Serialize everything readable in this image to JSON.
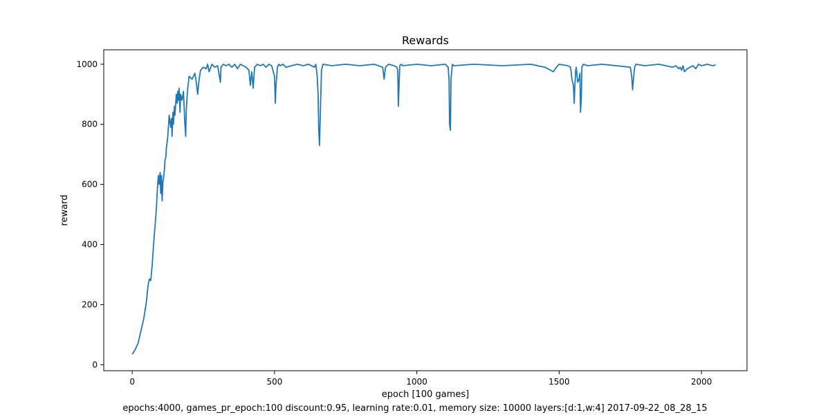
{
  "figure": {
    "caption": "epochs:4000, games_pr_epoch:100 discount:0.95, learning rate:0.01, memory size: 10000 layers:[d:1,w:4] 2017-09-22_08_28_15"
  },
  "chart_data": {
    "type": "line",
    "title": "Rewards",
    "xlabel": "epoch [100 games]",
    "ylabel": "reward",
    "xlim": [
      -100,
      2160
    ],
    "ylim": [
      -20,
      1048
    ],
    "xticks": [
      0,
      500,
      1000,
      1500,
      2000
    ],
    "yticks": [
      0,
      200,
      400,
      600,
      800,
      1000
    ],
    "grid": false,
    "legend": "none",
    "series": [
      {
        "color": "#1f77b4",
        "x": [
          0,
          10,
          20,
          30,
          40,
          50,
          55,
          60,
          65,
          70,
          75,
          80,
          85,
          88,
          92,
          95,
          98,
          100,
          103,
          105,
          108,
          110,
          113,
          115,
          118,
          120,
          125,
          130,
          135,
          138,
          140,
          143,
          145,
          148,
          150,
          155,
          158,
          160,
          163,
          165,
          168,
          170,
          175,
          180,
          185,
          188,
          190,
          195,
          200,
          210,
          220,
          225,
          230,
          235,
          240,
          250,
          260,
          265,
          270,
          280,
          290,
          300,
          310,
          312,
          320,
          330,
          340,
          350,
          360,
          370,
          380,
          390,
          400,
          410,
          415,
          420,
          425,
          430,
          440,
          450,
          460,
          470,
          480,
          490,
          500,
          503,
          505,
          508,
          510,
          515,
          520,
          530,
          540,
          560,
          580,
          600,
          620,
          640,
          645,
          650,
          653,
          655,
          658,
          660,
          665,
          670,
          700,
          750,
          800,
          850,
          880,
          885,
          890,
          900,
          920,
          930,
          933,
          935,
          938,
          940,
          945,
          950,
          1000,
          1050,
          1100,
          1110,
          1113,
          1115,
          1118,
          1120,
          1125,
          1130,
          1200,
          1300,
          1400,
          1450,
          1470,
          1480,
          1490,
          1500,
          1530,
          1540,
          1545,
          1550,
          1553,
          1555,
          1558,
          1560,
          1565,
          1570,
          1573,
          1575,
          1578,
          1580,
          1585,
          1600,
          1650,
          1700,
          1750,
          1755,
          1758,
          1760,
          1765,
          1770,
          1800,
          1850,
          1900,
          1910,
          1920,
          1925,
          1930,
          1935,
          1940,
          1950,
          1960,
          1970,
          1980,
          1990,
          2000,
          2020,
          2040,
          2050
        ],
        "y": [
          35,
          50,
          70,
          110,
          150,
          210,
          260,
          285,
          280,
          330,
          400,
          460,
          520,
          580,
          630,
          600,
          640,
          570,
          630,
          545,
          610,
          620,
          650,
          680,
          690,
          720,
          760,
          830,
          790,
          820,
          760,
          840,
          800,
          860,
          830,
          900,
          870,
          910,
          880,
          920,
          840,
          900,
          880,
          910,
          800,
          760,
          850,
          920,
          960,
          950,
          970,
          940,
          900,
          950,
          980,
          990,
          985,
          1000,
          975,
          1000,
          990,
          995,
          940,
          990,
          1000,
          995,
          1000,
          990,
          1000,
          985,
          1000,
          995,
          990,
          980,
          930,
          975,
          920,
          990,
          1000,
          995,
          1000,
          990,
          1000,
          995,
          960,
          870,
          930,
          960,
          990,
          1000,
          995,
          1000,
          990,
          995,
          1000,
          995,
          1000,
          990,
          1000,
          960,
          900,
          790,
          730,
          800,
          980,
          1000,
          995,
          1000,
          995,
          1000,
          990,
          950,
          990,
          1000,
          995,
          990,
          980,
          860,
          940,
          995,
          1000,
          995,
          1000,
          995,
          1000,
          990,
          950,
          800,
          780,
          950,
          1000,
          995,
          1000,
          995,
          1000,
          990,
          980,
          975,
          990,
          1000,
          995,
          990,
          950,
          930,
          870,
          920,
          980,
          990,
          940,
          950,
          970,
          840,
          890,
          990,
          1000,
          995,
          1000,
          995,
          990,
          960,
          915,
          940,
          990,
          1000,
          995,
          1000,
          990,
          995,
          985,
          990,
          980,
          995,
          975,
          985,
          990,
          995,
          985,
          1000,
          995,
          1000,
          995,
          998
        ]
      }
    ]
  }
}
